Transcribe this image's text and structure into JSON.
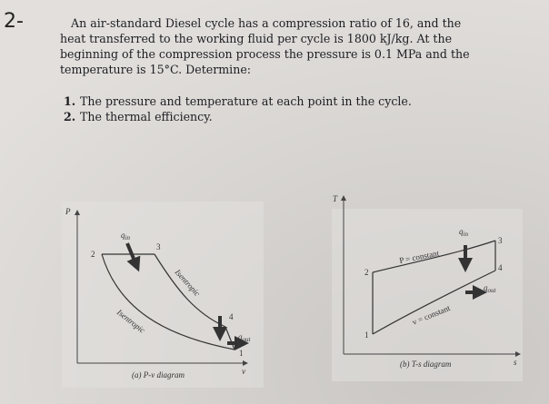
{
  "problem_number": "2-",
  "problem": {
    "lines": [
      "An air-standard Diesel cycle has a compression ratio of 16, and the",
      "heat transferred to the working fluid per cycle is 1800 kJ/kg. At the",
      "beginning of the compression process the pressure is 0.1 MPa and the",
      "temperature is 15°C. Determine:"
    ]
  },
  "tasks": [
    {
      "number": "1.",
      "text": "The pressure and temperature at each point in the cycle."
    },
    {
      "number": "2.",
      "text": "The thermal efficiency."
    }
  ],
  "pv_diagram": {
    "y_axis": "P",
    "x_axis": "v",
    "points": [
      "1",
      "2",
      "3",
      "4"
    ],
    "q_in": {
      "symbol": "q",
      "subscript": "in"
    },
    "q_out": {
      "symbol": "q",
      "subscript": "out"
    },
    "process_labels": [
      "Isentropic",
      "Isentropic"
    ],
    "caption": "(a) P-v diagram"
  },
  "ts_diagram": {
    "y_axis": "T",
    "x_axis": "s",
    "points": [
      "1",
      "2",
      "3",
      "4"
    ],
    "q_in": {
      "symbol": "q",
      "subscript": "in"
    },
    "q_out": {
      "symbol": "q",
      "subscript": "out"
    },
    "process_labels": [
      "P = constant",
      "v = constant"
    ],
    "caption": "(b) T-s diagram"
  }
}
